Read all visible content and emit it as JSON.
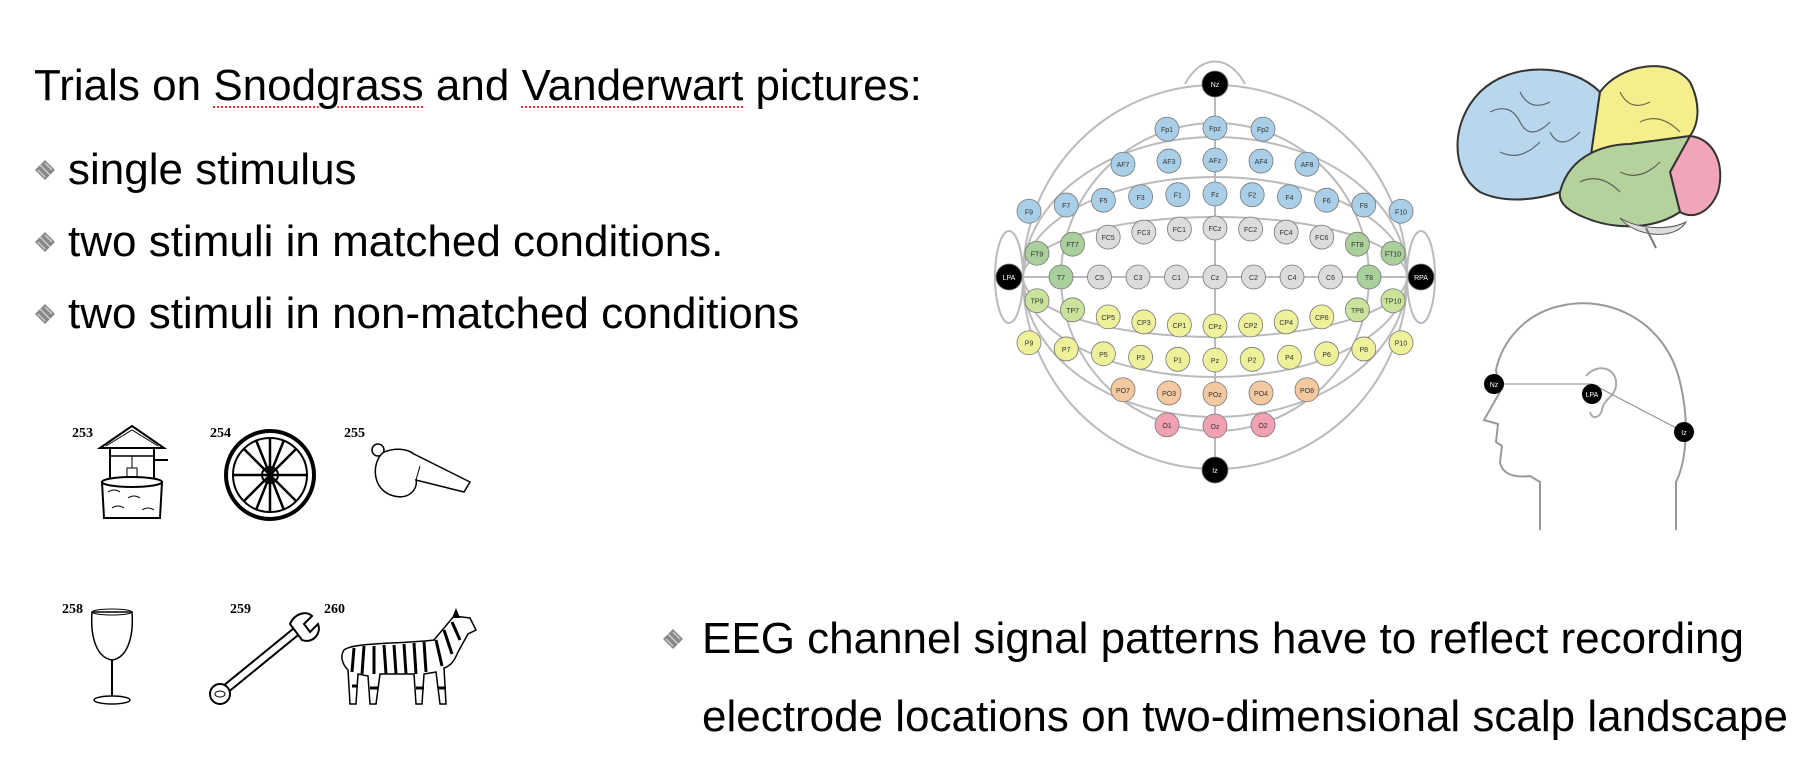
{
  "heading": {
    "part1": "Trials on ",
    "snodgrass": "Snodgrass",
    "part2": " and ",
    "vanderwart": "Vanderwart",
    "part3": " pictures:"
  },
  "bullets": [
    "single stimulus",
    "two stimuli in matched conditions.",
    "two stimuli in non-matched conditions"
  ],
  "pictures": [
    {
      "num": "253",
      "icon": "well-icon"
    },
    {
      "num": "254",
      "icon": "wheel-icon"
    },
    {
      "num": "255",
      "icon": "whistle-icon"
    },
    {
      "num": "258",
      "icon": "wine-glass-icon"
    },
    {
      "num": "259",
      "icon": "wrench-icon"
    },
    {
      "num": "260",
      "icon": "zebra-icon"
    }
  ],
  "eeg": {
    "line1": "EEG channel signal patterns have to reflect recording",
    "line2": "electrode locations on two-dimensional scalp landscape"
  },
  "electrodes": {
    "top": "Nz",
    "bottom": "Iz",
    "left": "LPA",
    "right": "RPA",
    "rows": [
      [
        "Fp1",
        "Fpz",
        "Fp2"
      ],
      [
        "AF7",
        "AF3",
        "AFz",
        "AF4",
        "AF8"
      ],
      [
        "F9",
        "F7",
        "F5",
        "F3",
        "F1",
        "Fz",
        "F2",
        "F4",
        "F6",
        "F8",
        "F10"
      ],
      [
        "FT9",
        "FT7",
        "FC5",
        "FC3",
        "FC1",
        "FCz",
        "FC2",
        "FC4",
        "FC6",
        "FT8",
        "FT10"
      ],
      [
        "T7",
        "C5",
        "C3",
        "C1",
        "Cz",
        "C2",
        "C4",
        "C6",
        "T8"
      ],
      [
        "TP9",
        "TP7",
        "CP5",
        "CP3",
        "CP1",
        "CPz",
        "CP2",
        "CP4",
        "CP6",
        "TP8",
        "TP10"
      ],
      [
        "P9",
        "P7",
        "P5",
        "P3",
        "P1",
        "Pz",
        "P2",
        "P4",
        "P6",
        "P8",
        "P10"
      ],
      [
        "PO7",
        "PO3",
        "POz",
        "PO4",
        "PO8"
      ],
      [
        "O1",
        "Oz",
        "O2"
      ]
    ],
    "head_side": [
      "Nz",
      "LPA",
      "Iz"
    ]
  },
  "colors": {
    "frontal": "#a9cfe8",
    "central": "#dcdcdc",
    "temporal": "#a9cf9a",
    "parietal": "#eef09a",
    "occipital_parietal": "#f5c9a0",
    "occipital": "#f2a0b3",
    "fiducial": "#000000"
  }
}
